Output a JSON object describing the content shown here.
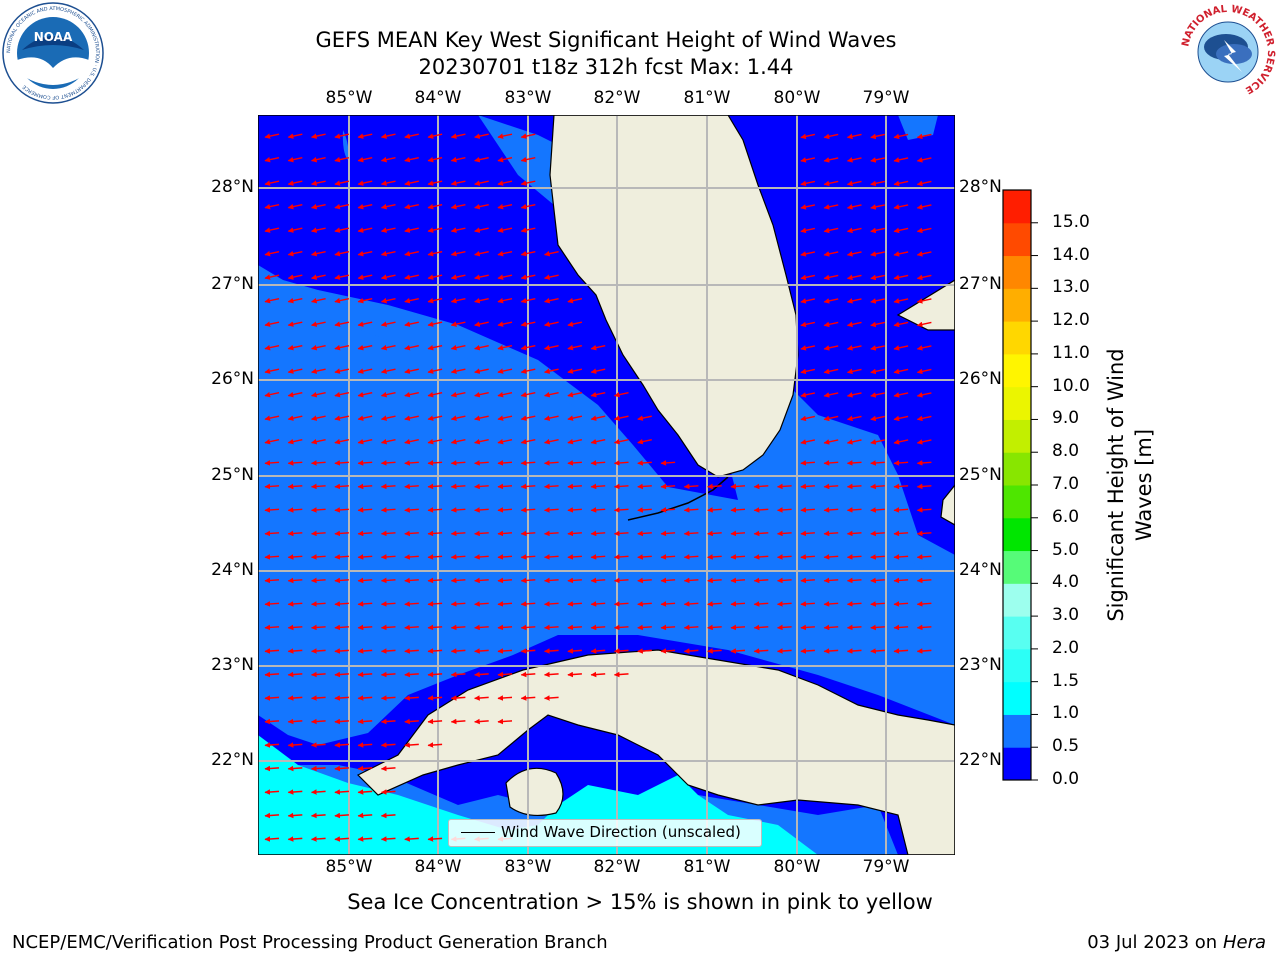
{
  "title": {
    "line1": "GEFS MEAN Key West Significant Height of Wind Waves",
    "line2": "20230701 t18z 312h fcst   Max: 1.44"
  },
  "map": {
    "lon_ticks": [
      "85°W",
      "84°W",
      "83°W",
      "82°W",
      "81°W",
      "80°W",
      "79°W"
    ],
    "lat_ticks": [
      "28°N",
      "27°N",
      "26°N",
      "25°N",
      "24°N",
      "23°N",
      "22°N"
    ],
    "legend_label": "Wind Wave Direction (unscaled)",
    "land_color": "#efeedd",
    "arrow_color": "#ff0000"
  },
  "colorbar": {
    "label": "Significant Height of Wind Waves [m]",
    "ticks": [
      "0.0",
      "0.5",
      "1.0",
      "1.5",
      "2.0",
      "3.0",
      "4.0",
      "5.0",
      "6.0",
      "7.0",
      "8.0",
      "9.0",
      "10.0",
      "11.0",
      "12.0",
      "13.0",
      "14.0",
      "15.0"
    ],
    "colors": [
      "#0000ff",
      "#1476ff",
      "#00ffff",
      "#2cfff6",
      "#58fff1",
      "#9dffee",
      "#56fb78",
      "#00e600",
      "#4ee600",
      "#88e600",
      "#c2ef00",
      "#ebf500",
      "#fff500",
      "#ffd700",
      "#ffae00",
      "#ff8700",
      "#ff4a00",
      "#ff1e00"
    ]
  },
  "subtitle": "Sea Ice Concentration > 15% is shown in pink to yellow",
  "footer": {
    "left": "NCEP/EMC/Verification Post Processing Product Generation Branch",
    "right_date": "03 Jul 2023 on ",
    "right_machine": "Hera"
  },
  "logos": {
    "noaa_text": "NOAA",
    "noaa_ring": "NATIONAL OCEANIC AND ATMOSPHERIC ADMINISTRATION · U.S. DEPARTMENT OF COMMERCE",
    "nws_ring": "NATIONAL WEATHER SERVICE"
  }
}
